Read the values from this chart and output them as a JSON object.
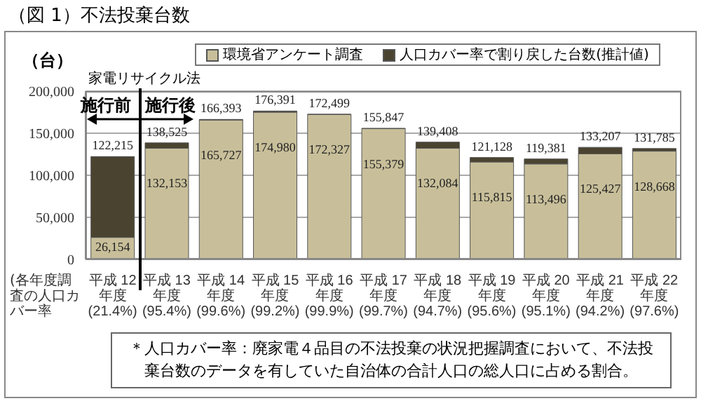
{
  "chart_data": {
    "type": "bar",
    "title": "（図 1）不法投棄台数",
    "ylabel": "（台）",
    "stacked": true,
    "categories": [
      "平成 12 年度\n(21.4%)",
      "平成 13 年度\n(95.4%)",
      "平成 14 年度\n(99.6%)",
      "平成 15 年度\n(99.2%)",
      "平成 16 年度\n(99.9%)",
      "平成 17 年度\n(99.7%)",
      "平成 18 年度\n(94.7%)",
      "平成 19 年度\n(95.6%)",
      "平成 20 年度\n(95.1%)",
      "平成 21 年度\n(94.2%)",
      "平成 22 年度\n(97.6%)"
    ],
    "series": [
      {
        "name": "環境省アンケート調査",
        "color": "#c8bf9a",
        "values": [
          26154,
          132153,
          165727,
          174980,
          172327,
          155379,
          132084,
          115815,
          113496,
          125427,
          128668
        ],
        "value_labels": [
          "26,154",
          "132,153",
          "165,727",
          "174,980",
          "172,327",
          "155,379",
          "132,084",
          "115,815",
          "113,496",
          "125,427",
          "128,668"
        ]
      },
      {
        "name": "人口カバー率で割り戻した台数(推計値)",
        "color": "#4a4330",
        "values": [
          96061,
          6372,
          666,
          1411,
          172,
          468,
          7324,
          5313,
          5885,
          7780,
          3117
        ]
      }
    ],
    "totals": [
      "122,215",
      "138,525",
      "166,393",
      "176,391",
      "172,499",
      "155,847",
      "139,408",
      "121,128",
      "119,381",
      "133,207",
      "131,785"
    ],
    "ylim": [
      0,
      200000
    ],
    "yticks": [
      {
        "value": 0,
        "label": "0"
      },
      {
        "value": 50000,
        "label": "50,000"
      },
      {
        "value": 100000,
        "label": "100,000"
      },
      {
        "value": 150000,
        "label": "150,000"
      },
      {
        "value": 200000,
        "label": "200,000"
      }
    ],
    "grid": "y",
    "legend": "top",
    "annotations": [
      "家電リサイクル法",
      "施行前",
      "施行後",
      "(各年度調査の人口カバー率",
      "＊人口カバー率：廃家電４品目の不法投棄の状況把握調査において、不法投棄台数のデータを有していた自治体の合計人口の総人口に占める割合。"
    ]
  }
}
